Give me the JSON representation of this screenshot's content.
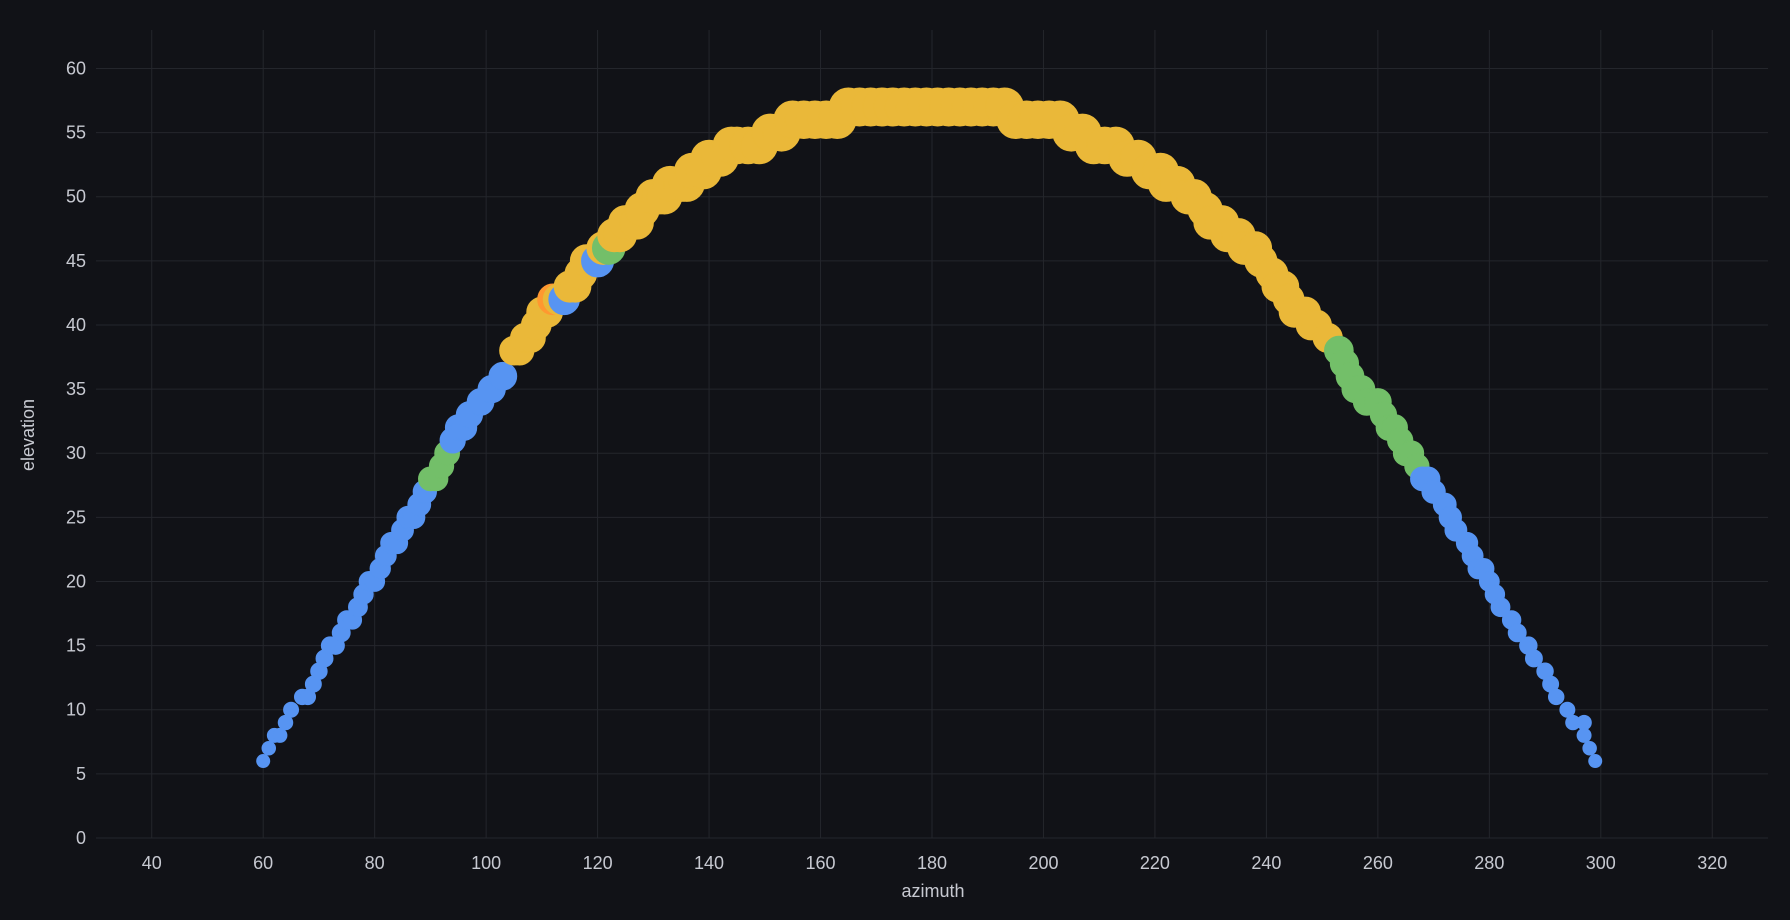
{
  "chart_data": {
    "type": "scatter",
    "xlabel": "azimuth",
    "ylabel": "elevation",
    "xlim": [
      30,
      330
    ],
    "ylim": [
      0,
      63
    ],
    "x_ticks": [
      40,
      60,
      80,
      100,
      120,
      140,
      160,
      180,
      200,
      220,
      240,
      260,
      280,
      300,
      320
    ],
    "y_ticks": [
      0,
      5,
      10,
      15,
      20,
      25,
      30,
      35,
      40,
      45,
      50,
      55,
      60
    ],
    "grid": true,
    "size_encoding": "point size grows with elevation",
    "colors": {
      "blue": "#5794f2",
      "green": "#73bf69",
      "yellow": "#eab839",
      "orange": "#ff9830"
    },
    "points": [
      {
        "x": 60,
        "y": 6,
        "c": "blue"
      },
      {
        "x": 61,
        "y": 7,
        "c": "blue"
      },
      {
        "x": 62,
        "y": 8,
        "c": "blue"
      },
      {
        "x": 63,
        "y": 8,
        "c": "blue"
      },
      {
        "x": 64,
        "y": 9,
        "c": "blue"
      },
      {
        "x": 65,
        "y": 10,
        "c": "blue"
      },
      {
        "x": 67,
        "y": 11,
        "c": "blue"
      },
      {
        "x": 68,
        "y": 11,
        "c": "blue"
      },
      {
        "x": 69,
        "y": 12,
        "c": "blue"
      },
      {
        "x": 70,
        "y": 13,
        "c": "blue"
      },
      {
        "x": 71,
        "y": 14,
        "c": "blue"
      },
      {
        "x": 72,
        "y": 15,
        "c": "blue"
      },
      {
        "x": 73,
        "y": 15,
        "c": "blue"
      },
      {
        "x": 74,
        "y": 16,
        "c": "blue"
      },
      {
        "x": 75,
        "y": 17,
        "c": "blue"
      },
      {
        "x": 76,
        "y": 17,
        "c": "blue"
      },
      {
        "x": 77,
        "y": 18,
        "c": "blue"
      },
      {
        "x": 78,
        "y": 19,
        "c": "blue"
      },
      {
        "x": 79,
        "y": 20,
        "c": "blue"
      },
      {
        "x": 80,
        "y": 20,
        "c": "blue"
      },
      {
        "x": 81,
        "y": 21,
        "c": "blue"
      },
      {
        "x": 82,
        "y": 22,
        "c": "blue"
      },
      {
        "x": 83,
        "y": 23,
        "c": "blue"
      },
      {
        "x": 84,
        "y": 23,
        "c": "blue"
      },
      {
        "x": 85,
        "y": 24,
        "c": "blue"
      },
      {
        "x": 86,
        "y": 25,
        "c": "blue"
      },
      {
        "x": 87,
        "y": 25,
        "c": "blue"
      },
      {
        "x": 88,
        "y": 26,
        "c": "blue"
      },
      {
        "x": 89,
        "y": 27,
        "c": "blue"
      },
      {
        "x": 90,
        "y": 28,
        "c": "green"
      },
      {
        "x": 91,
        "y": 28,
        "c": "green"
      },
      {
        "x": 92,
        "y": 29,
        "c": "green"
      },
      {
        "x": 93,
        "y": 30,
        "c": "green"
      },
      {
        "x": 94,
        "y": 31,
        "c": "blue"
      },
      {
        "x": 95,
        "y": 32,
        "c": "blue"
      },
      {
        "x": 96,
        "y": 32,
        "c": "blue"
      },
      {
        "x": 97,
        "y": 33,
        "c": "blue"
      },
      {
        "x": 99,
        "y": 34,
        "c": "blue"
      },
      {
        "x": 101,
        "y": 35,
        "c": "blue"
      },
      {
        "x": 103,
        "y": 36,
        "c": "blue"
      },
      {
        "x": 105,
        "y": 38,
        "c": "yellow"
      },
      {
        "x": 106,
        "y": 38,
        "c": "yellow"
      },
      {
        "x": 107,
        "y": 39,
        "c": "yellow"
      },
      {
        "x": 108,
        "y": 39,
        "c": "yellow"
      },
      {
        "x": 109,
        "y": 40,
        "c": "yellow"
      },
      {
        "x": 110,
        "y": 41,
        "c": "yellow"
      },
      {
        "x": 111,
        "y": 41,
        "c": "yellow"
      },
      {
        "x": 112,
        "y": 42,
        "c": "orange"
      },
      {
        "x": 113,
        "y": 42,
        "c": "yellow"
      },
      {
        "x": 114,
        "y": 42,
        "c": "blue"
      },
      {
        "x": 115,
        "y": 43,
        "c": "yellow"
      },
      {
        "x": 116,
        "y": 43,
        "c": "yellow"
      },
      {
        "x": 117,
        "y": 44,
        "c": "yellow"
      },
      {
        "x": 118,
        "y": 45,
        "c": "yellow"
      },
      {
        "x": 120,
        "y": 45,
        "c": "blue"
      },
      {
        "x": 121,
        "y": 46,
        "c": "yellow"
      },
      {
        "x": 122,
        "y": 46,
        "c": "green"
      },
      {
        "x": 123,
        "y": 47,
        "c": "yellow"
      },
      {
        "x": 124,
        "y": 47,
        "c": "yellow"
      },
      {
        "x": 125,
        "y": 48,
        "c": "yellow"
      },
      {
        "x": 127,
        "y": 48,
        "c": "yellow"
      },
      {
        "x": 128,
        "y": 49,
        "c": "yellow"
      },
      {
        "x": 130,
        "y": 50,
        "c": "yellow"
      },
      {
        "x": 131,
        "y": 50,
        "c": "yellow"
      },
      {
        "x": 132,
        "y": 50,
        "c": "yellow"
      },
      {
        "x": 133,
        "y": 51,
        "c": "yellow"
      },
      {
        "x": 135,
        "y": 51,
        "c": "yellow"
      },
      {
        "x": 136,
        "y": 51,
        "c": "yellow"
      },
      {
        "x": 137,
        "y": 52,
        "c": "yellow"
      },
      {
        "x": 139,
        "y": 52,
        "c": "yellow"
      },
      {
        "x": 140,
        "y": 53,
        "c": "yellow"
      },
      {
        "x": 142,
        "y": 53,
        "c": "yellow"
      },
      {
        "x": 144,
        "y": 54,
        "c": "yellow"
      },
      {
        "x": 145,
        "y": 54,
        "c": "yellow"
      },
      {
        "x": 147,
        "y": 54,
        "c": "yellow"
      },
      {
        "x": 149,
        "y": 54,
        "c": "yellow"
      },
      {
        "x": 151,
        "y": 55,
        "c": "yellow"
      },
      {
        "x": 153,
        "y": 55,
        "c": "yellow"
      },
      {
        "x": 155,
        "y": 56,
        "c": "yellow"
      },
      {
        "x": 157,
        "y": 56,
        "c": "yellow"
      },
      {
        "x": 159,
        "y": 56,
        "c": "yellow"
      },
      {
        "x": 161,
        "y": 56,
        "c": "yellow"
      },
      {
        "x": 163,
        "y": 56,
        "c": "yellow"
      },
      {
        "x": 165,
        "y": 57,
        "c": "yellow"
      },
      {
        "x": 167,
        "y": 57,
        "c": "yellow"
      },
      {
        "x": 169,
        "y": 57,
        "c": "yellow"
      },
      {
        "x": 171,
        "y": 57,
        "c": "yellow"
      },
      {
        "x": 173,
        "y": 57,
        "c": "yellow"
      },
      {
        "x": 175,
        "y": 57,
        "c": "yellow"
      },
      {
        "x": 177,
        "y": 57,
        "c": "yellow"
      },
      {
        "x": 179,
        "y": 57,
        "c": "yellow"
      },
      {
        "x": 181,
        "y": 57,
        "c": "yellow"
      },
      {
        "x": 183,
        "y": 57,
        "c": "yellow"
      },
      {
        "x": 185,
        "y": 57,
        "c": "yellow"
      },
      {
        "x": 187,
        "y": 57,
        "c": "yellow"
      },
      {
        "x": 189,
        "y": 57,
        "c": "yellow"
      },
      {
        "x": 191,
        "y": 57,
        "c": "yellow"
      },
      {
        "x": 193,
        "y": 57,
        "c": "yellow"
      },
      {
        "x": 195,
        "y": 56,
        "c": "yellow"
      },
      {
        "x": 197,
        "y": 56,
        "c": "yellow"
      },
      {
        "x": 199,
        "y": 56,
        "c": "yellow"
      },
      {
        "x": 201,
        "y": 56,
        "c": "yellow"
      },
      {
        "x": 203,
        "y": 56,
        "c": "yellow"
      },
      {
        "x": 205,
        "y": 55,
        "c": "yellow"
      },
      {
        "x": 207,
        "y": 55,
        "c": "yellow"
      },
      {
        "x": 209,
        "y": 54,
        "c": "yellow"
      },
      {
        "x": 211,
        "y": 54,
        "c": "yellow"
      },
      {
        "x": 213,
        "y": 54,
        "c": "yellow"
      },
      {
        "x": 215,
        "y": 53,
        "c": "yellow"
      },
      {
        "x": 217,
        "y": 53,
        "c": "yellow"
      },
      {
        "x": 219,
        "y": 52,
        "c": "yellow"
      },
      {
        "x": 221,
        "y": 52,
        "c": "yellow"
      },
      {
        "x": 222,
        "y": 51,
        "c": "yellow"
      },
      {
        "x": 224,
        "y": 51,
        "c": "yellow"
      },
      {
        "x": 226,
        "y": 50,
        "c": "yellow"
      },
      {
        "x": 227,
        "y": 50,
        "c": "yellow"
      },
      {
        "x": 229,
        "y": 49,
        "c": "yellow"
      },
      {
        "x": 230,
        "y": 48,
        "c": "yellow"
      },
      {
        "x": 232,
        "y": 48,
        "c": "yellow"
      },
      {
        "x": 233,
        "y": 47,
        "c": "yellow"
      },
      {
        "x": 235,
        "y": 47,
        "c": "yellow"
      },
      {
        "x": 236,
        "y": 46,
        "c": "yellow"
      },
      {
        "x": 238,
        "y": 46,
        "c": "yellow"
      },
      {
        "x": 239,
        "y": 45,
        "c": "yellow"
      },
      {
        "x": 241,
        "y": 44,
        "c": "yellow"
      },
      {
        "x": 242,
        "y": 43,
        "c": "yellow"
      },
      {
        "x": 243,
        "y": 43,
        "c": "yellow"
      },
      {
        "x": 244,
        "y": 42,
        "c": "yellow"
      },
      {
        "x": 245,
        "y": 41,
        "c": "yellow"
      },
      {
        "x": 247,
        "y": 41,
        "c": "yellow"
      },
      {
        "x": 248,
        "y": 40,
        "c": "yellow"
      },
      {
        "x": 249,
        "y": 40,
        "c": "yellow"
      },
      {
        "x": 251,
        "y": 39,
        "c": "yellow"
      },
      {
        "x": 253,
        "y": 38,
        "c": "green"
      },
      {
        "x": 254,
        "y": 37,
        "c": "green"
      },
      {
        "x": 255,
        "y": 36,
        "c": "green"
      },
      {
        "x": 256,
        "y": 35,
        "c": "green"
      },
      {
        "x": 257,
        "y": 35,
        "c": "green"
      },
      {
        "x": 258,
        "y": 34,
        "c": "green"
      },
      {
        "x": 260,
        "y": 34,
        "c": "green"
      },
      {
        "x": 261,
        "y": 33,
        "c": "green"
      },
      {
        "x": 262,
        "y": 32,
        "c": "green"
      },
      {
        "x": 263,
        "y": 32,
        "c": "green"
      },
      {
        "x": 264,
        "y": 31,
        "c": "green"
      },
      {
        "x": 265,
        "y": 30,
        "c": "green"
      },
      {
        "x": 266,
        "y": 30,
        "c": "green"
      },
      {
        "x": 267,
        "y": 29,
        "c": "green"
      },
      {
        "x": 268,
        "y": 28,
        "c": "blue"
      },
      {
        "x": 269,
        "y": 28,
        "c": "blue"
      },
      {
        "x": 270,
        "y": 27,
        "c": "blue"
      },
      {
        "x": 272,
        "y": 26,
        "c": "blue"
      },
      {
        "x": 273,
        "y": 25,
        "c": "blue"
      },
      {
        "x": 274,
        "y": 24,
        "c": "blue"
      },
      {
        "x": 276,
        "y": 23,
        "c": "blue"
      },
      {
        "x": 277,
        "y": 22,
        "c": "blue"
      },
      {
        "x": 278,
        "y": 21,
        "c": "blue"
      },
      {
        "x": 279,
        "y": 21,
        "c": "blue"
      },
      {
        "x": 280,
        "y": 20,
        "c": "blue"
      },
      {
        "x": 281,
        "y": 19,
        "c": "blue"
      },
      {
        "x": 282,
        "y": 18,
        "c": "blue"
      },
      {
        "x": 284,
        "y": 17,
        "c": "blue"
      },
      {
        "x": 285,
        "y": 16,
        "c": "blue"
      },
      {
        "x": 287,
        "y": 15,
        "c": "blue"
      },
      {
        "x": 288,
        "y": 14,
        "c": "blue"
      },
      {
        "x": 290,
        "y": 13,
        "c": "blue"
      },
      {
        "x": 291,
        "y": 12,
        "c": "blue"
      },
      {
        "x": 292,
        "y": 11,
        "c": "blue"
      },
      {
        "x": 294,
        "y": 10,
        "c": "blue"
      },
      {
        "x": 295,
        "y": 9,
        "c": "blue"
      },
      {
        "x": 297,
        "y": 9,
        "c": "blue"
      },
      {
        "x": 297,
        "y": 8,
        "c": "blue"
      },
      {
        "x": 298,
        "y": 7,
        "c": "blue"
      },
      {
        "x": 299,
        "y": 6,
        "c": "blue"
      }
    ]
  }
}
